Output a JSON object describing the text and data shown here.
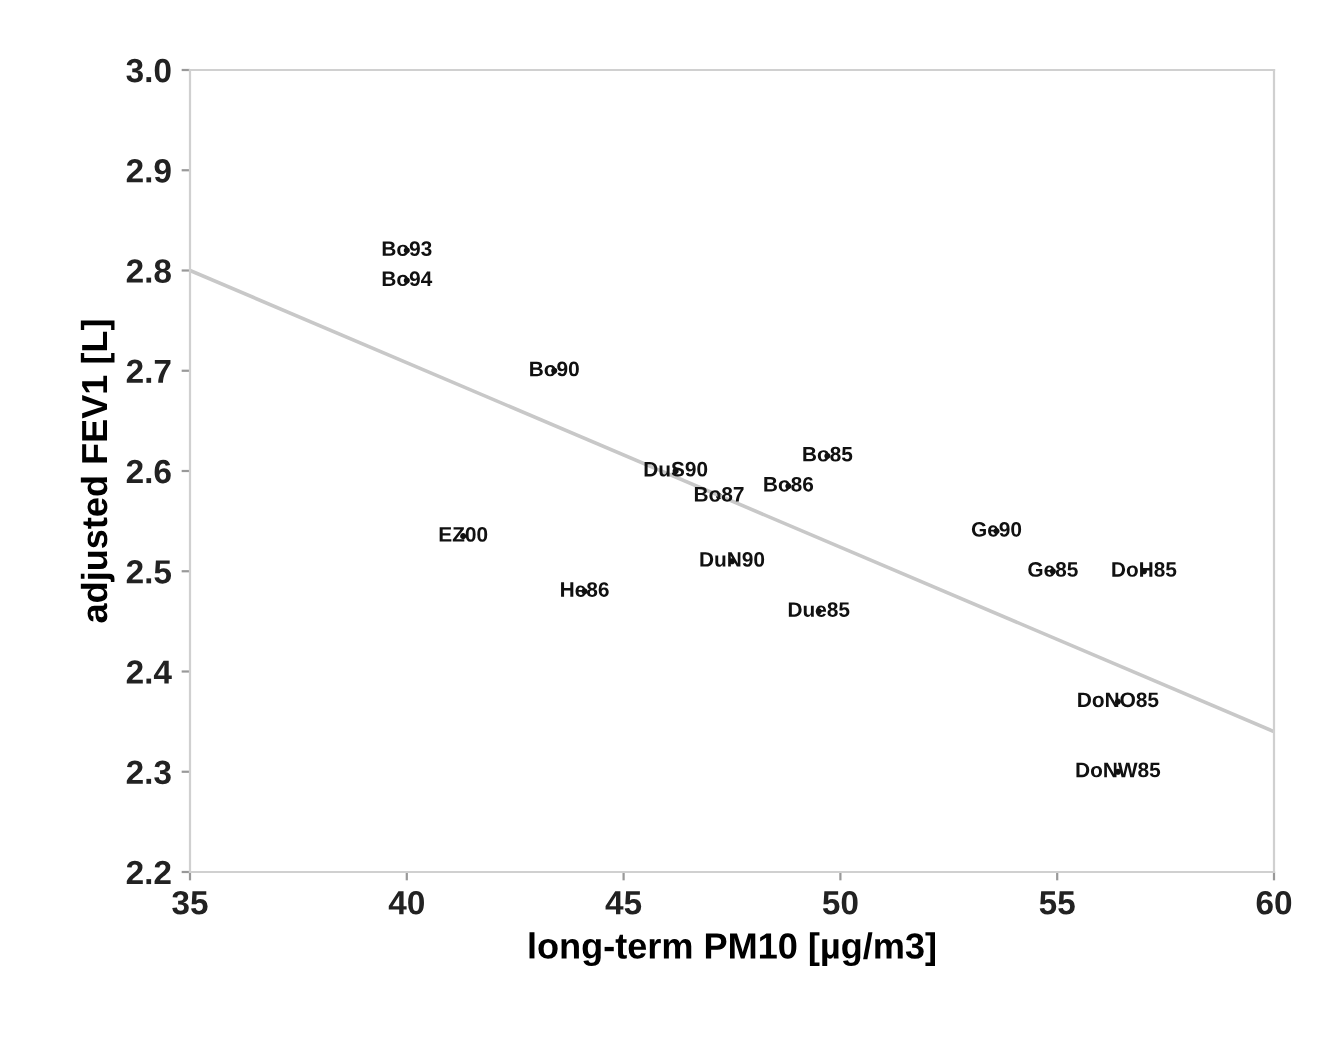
{
  "chart_data": {
    "type": "scatter",
    "xlabel": "long-term PM10 [µg/m3]",
    "ylabel": "adjusted FEV1 [L]",
    "xlim": [
      35,
      60
    ],
    "xticks": [
      35,
      40,
      45,
      50,
      55,
      60
    ],
    "ylim": [
      2.2,
      3.0
    ],
    "yticks": [
      2.2,
      2.3,
      2.4,
      2.5,
      2.6,
      2.7,
      2.8,
      2.9,
      {
        "value": 3.0,
        "label": "3.0"
      }
    ],
    "grid": false,
    "legend": false,
    "series": [
      {
        "color": "#111111",
        "x": [
          40.0,
          40.0,
          43.4,
          46.2,
          47.2,
          48.8,
          49.7,
          41.3,
          47.5,
          44.1,
          49.5,
          53.6,
          54.9,
          57.0,
          56.4,
          56.4
        ],
        "values": [
          2.82,
          2.79,
          2.7,
          2.6,
          2.575,
          2.585,
          2.615,
          2.535,
          2.51,
          2.48,
          2.46,
          2.54,
          2.5,
          2.5,
          2.37,
          2.3
        ],
        "value_labels": [
          "Bo93",
          "Bo94",
          "Bo90",
          "DuS90",
          "Bo87",
          "Bo86",
          "Bo85",
          "EZ00",
          "DuN90",
          "He86",
          "Due85",
          "Ge90",
          "Ge85",
          "DoH85",
          "DoNO85",
          "DoNW85"
        ]
      },
      {
        "type": "line",
        "color": "#c8c8c8",
        "x": [
          35,
          60
        ],
        "values": [
          2.8,
          2.34
        ]
      }
    ]
  }
}
